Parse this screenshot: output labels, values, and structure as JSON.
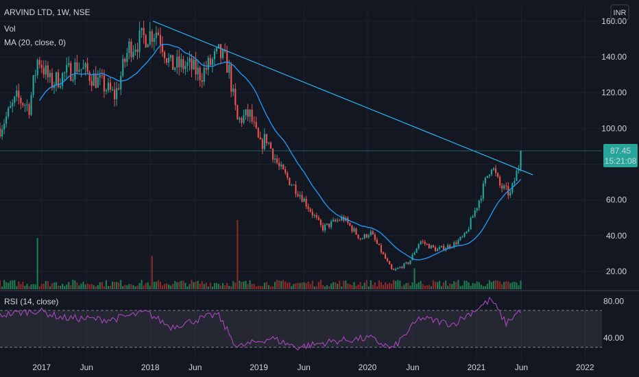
{
  "header": {
    "symbol_line": "ARVIND LTD, 1W, NSE",
    "vol_label": "Vol",
    "ma_label": "MA (20, close, 0)",
    "rsi_label": "RSI (14, close)",
    "currency": "INR"
  },
  "price_tag": {
    "value": "87.45",
    "countdown": "15:21:08"
  },
  "colors": {
    "background": "#131722",
    "up": "#26a69a",
    "down": "#ef5350",
    "vol_up": "#1e7a50",
    "vol_down": "#8c2a2a",
    "ma": "#2196f3",
    "trendline": "#29b6f6",
    "rsi": "#ab47bc",
    "tag": "#26a69a",
    "grid": "#1e222d"
  },
  "chart_data": {
    "type": "candlestick",
    "interval": "1W",
    "price_axis": {
      "ticks": [
        20,
        40,
        60,
        80,
        100,
        120,
        140,
        160
      ],
      "tick_labels": [
        "20.00",
        "40.00",
        "60.00",
        "80.00",
        "100.00",
        "120.00",
        "140.00",
        "160.00"
      ],
      "range": [
        10,
        168
      ]
    },
    "rsi_axis": {
      "ticks": [
        40,
        80
      ],
      "tick_labels": [
        "40.00",
        "80.00"
      ],
      "range": [
        20,
        90
      ],
      "band": [
        30,
        70
      ]
    },
    "time_axis": {
      "labels": [
        "2017",
        "Jun",
        "2018",
        "Jun",
        "2019",
        "Jun",
        "2020",
        "Jun",
        "2021",
        "Jun",
        "2022"
      ],
      "dates": [
        "2017-01-01",
        "2017-06-01",
        "2018-01-01",
        "2018-06-01",
        "2019-01-01",
        "2019-06-01",
        "2020-01-01",
        "2020-06-01",
        "2021-01-01",
        "2021-06-01",
        "2022-01-01"
      ],
      "range": [
        "2016-08-14",
        "2022-02-27"
      ]
    },
    "last_price": 87.45,
    "close_anchors": [
      [
        "2016-08-14",
        100
      ],
      [
        "2016-10-10",
        117
      ],
      [
        "2016-11-20",
        112
      ],
      [
        "2016-12-20",
        140
      ],
      [
        "2017-02-01",
        125
      ],
      [
        "2017-05-01",
        135
      ],
      [
        "2017-07-20",
        125
      ],
      [
        "2017-09-05",
        118
      ],
      [
        "2017-10-20",
        145
      ],
      [
        "2017-12-20",
        152
      ],
      [
        "2018-01-25",
        155
      ],
      [
        "2018-03-10",
        135
      ],
      [
        "2018-05-10",
        135
      ],
      [
        "2018-06-20",
        130
      ],
      [
        "2018-08-20",
        142
      ],
      [
        "2018-09-20",
        135
      ],
      [
        "2018-10-20",
        104
      ],
      [
        "2018-12-01",
        108
      ],
      [
        "2019-01-05",
        90
      ],
      [
        "2019-01-25",
        95
      ],
      [
        "2019-03-10",
        78
      ],
      [
        "2019-05-25",
        62
      ],
      [
        "2019-08-01",
        44
      ],
      [
        "2019-10-10",
        50
      ],
      [
        "2019-12-10",
        38
      ],
      [
        "2020-01-10",
        42
      ],
      [
        "2020-03-25",
        20
      ],
      [
        "2020-05-20",
        25
      ],
      [
        "2020-06-25",
        37
      ],
      [
        "2020-08-20",
        32
      ],
      [
        "2020-10-15",
        35
      ],
      [
        "2020-11-25",
        40
      ],
      [
        "2021-01-10",
        60
      ],
      [
        "2021-02-20",
        80
      ],
      [
        "2021-03-20",
        68
      ],
      [
        "2021-04-25",
        63
      ],
      [
        "2021-05-25",
        80
      ],
      [
        "2021-06-04",
        87.45
      ]
    ],
    "trendline": {
      "from": [
        "2018-01-10",
        160
      ],
      "to": [
        "2021-07-10",
        74
      ]
    },
    "volume_spikes": [
      [
        "2016-12-20",
        34
      ],
      [
        "2018-01-10",
        22
      ],
      [
        "2018-10-20",
        46
      ],
      [
        "2020-06-10",
        14
      ]
    ],
    "rsi_anchors": [
      [
        "2016-08-14",
        65
      ],
      [
        "2016-12-20",
        70
      ],
      [
        "2017-03-10",
        62
      ],
      [
        "2017-08-20",
        60
      ],
      [
        "2017-12-20",
        68
      ],
      [
        "2018-03-10",
        52
      ],
      [
        "2018-08-15",
        66
      ],
      [
        "2018-10-20",
        30
      ],
      [
        "2019-02-10",
        40
      ],
      [
        "2019-05-10",
        30
      ],
      [
        "2019-09-20",
        37
      ],
      [
        "2020-01-10",
        40
      ],
      [
        "2020-03-25",
        28
      ],
      [
        "2020-06-25",
        62
      ],
      [
        "2020-10-15",
        55
      ],
      [
        "2021-02-20",
        82
      ],
      [
        "2021-04-10",
        56
      ],
      [
        "2021-06-04",
        72
      ]
    ]
  }
}
